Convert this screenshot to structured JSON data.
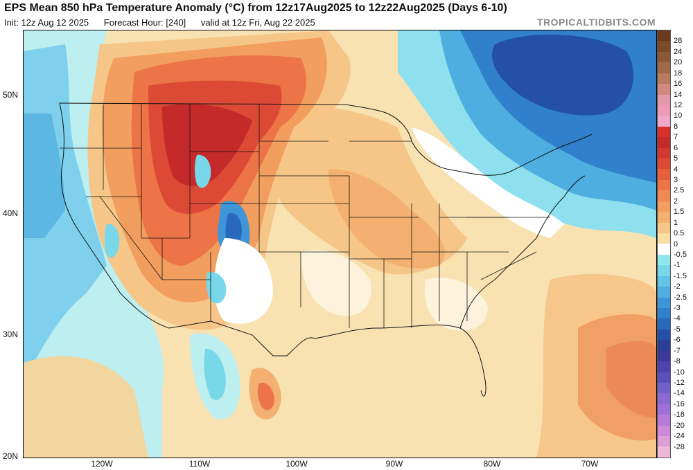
{
  "header": {
    "title": "EPS Mean 850 hPa Temperature Anomaly (°C) from 12z17Aug2025 to 12z22Aug2025 (Days 6-10)",
    "init": "Init: 12z Aug 12 2025",
    "forecast_hour": "Forecast Hour: [240]",
    "valid": "valid at 12z Fri, Aug 22 2025",
    "brand": "TROPICALTIDBITS.COM"
  },
  "axes": {
    "lat_labels": [
      "50N",
      "40N",
      "30N",
      "20N"
    ],
    "lon_labels": [
      "120W",
      "110W",
      "100W",
      "90W",
      "80W",
      "70W"
    ]
  },
  "colorbar": {
    "labels": [
      "28",
      "24",
      "20",
      "18",
      "16",
      "14",
      "12",
      "10",
      "8",
      "7",
      "6",
      "5",
      "4",
      "3",
      "2.5",
      "2",
      "1.5",
      "1",
      "0.5",
      "0",
      "-0.5",
      "-1",
      "-1.5",
      "-2",
      "-2.5",
      "-3",
      "-4",
      "-5",
      "-6",
      "-7",
      "-8",
      "-10",
      "-12",
      "-14",
      "-16",
      "-18",
      "-20",
      "-24",
      "-28"
    ],
    "colors": [
      "#7a4a2a",
      "#8a5a38",
      "#a06a4a",
      "#b87a60",
      "#d08a80",
      "#e29aa8",
      "#ec9ab8",
      "#f0a8c8",
      "#d8302a",
      "#c42a2a",
      "#d03a32",
      "#dc4a36",
      "#e4603c",
      "#ec7446",
      "#f08a52",
      "#f29e5e",
      "#f4b070",
      "#f6c688",
      "#f8dea6",
      "#ffffff",
      "#8ee8ee",
      "#78d8ea",
      "#62c4e6",
      "#4eaee0",
      "#3e96d8",
      "#3080cc",
      "#2a68bc",
      "#2450a8",
      "#2a3e96",
      "#3a3a9a",
      "#4a44ac",
      "#5a50bc",
      "#7060c8",
      "#8a6ad0",
      "#a070d8",
      "#b87ad8",
      "#cc8ad8",
      "#dca0d8",
      "#ecbad8"
    ]
  }
}
